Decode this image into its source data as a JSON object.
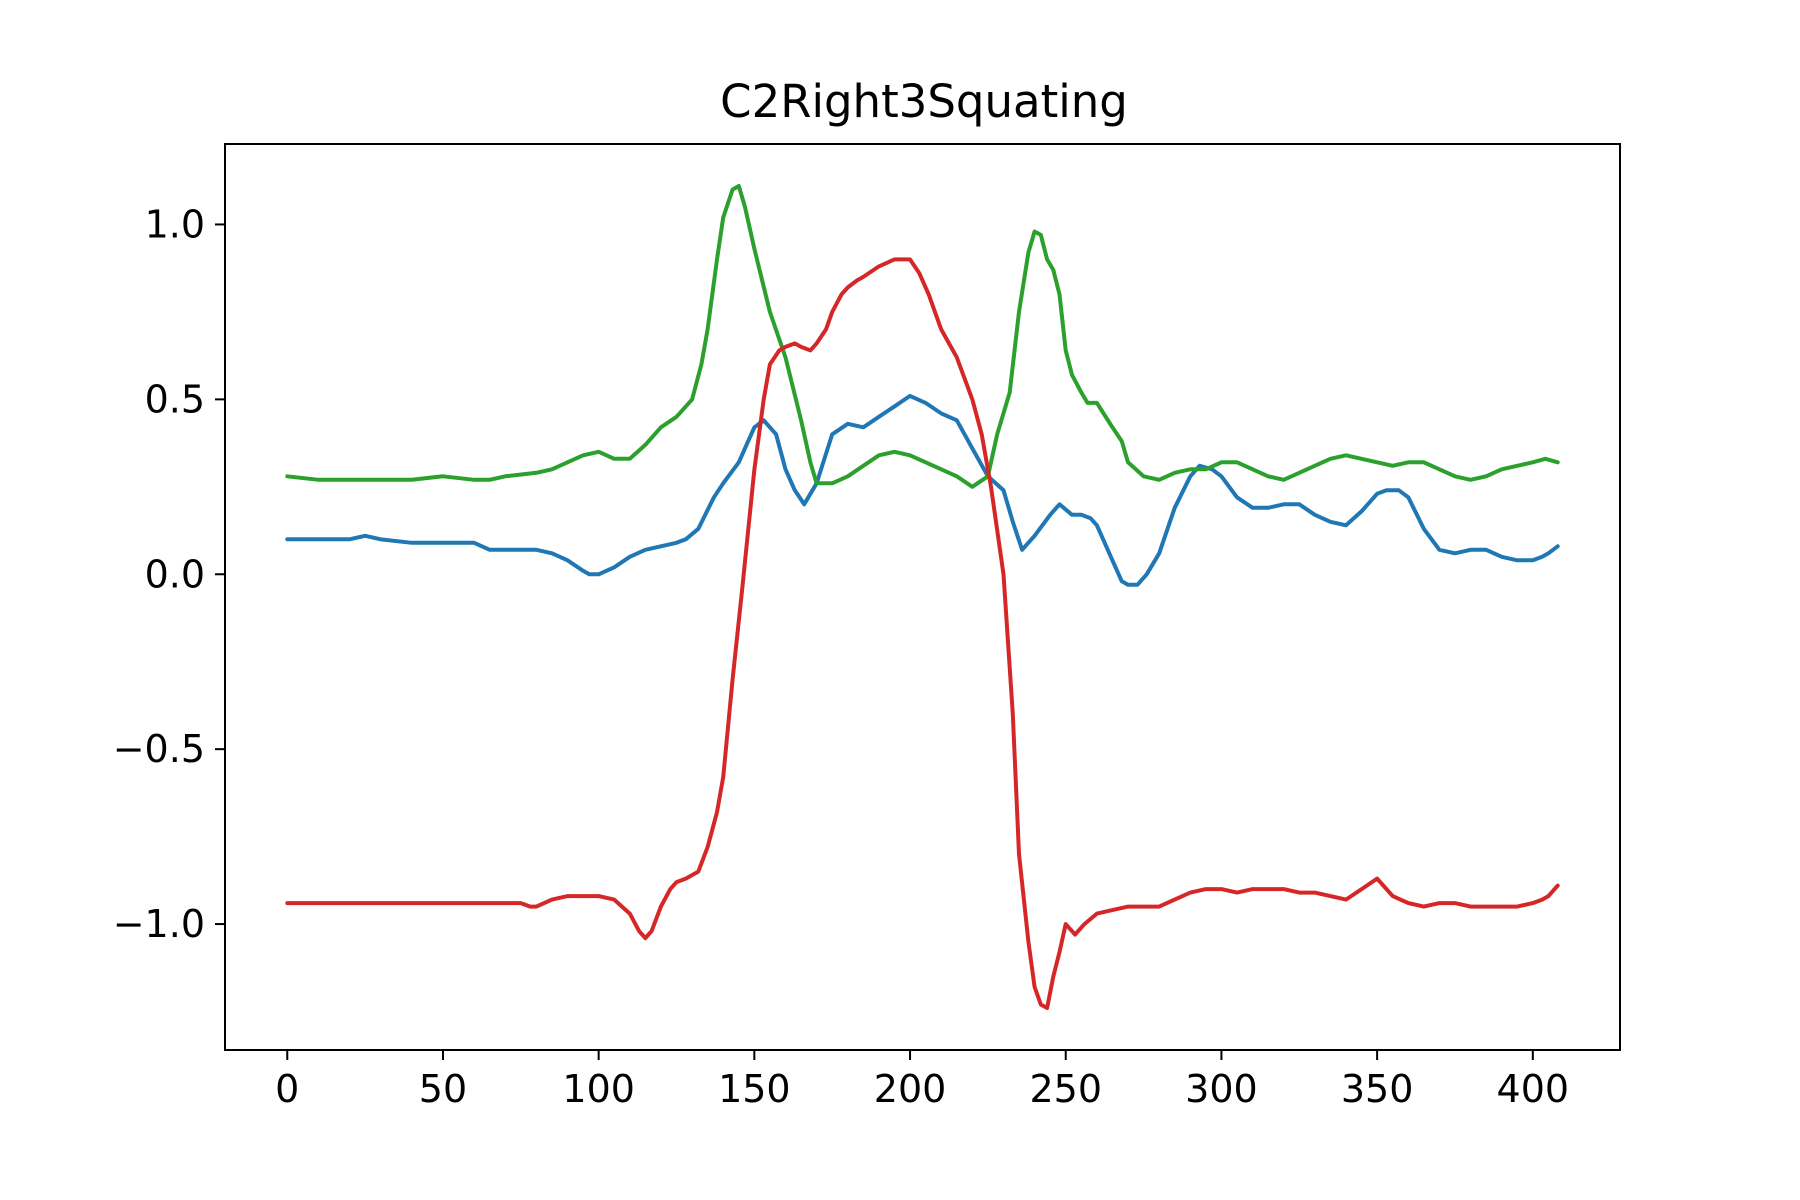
{
  "chart_data": {
    "type": "line",
    "title": "C2Right3Squating",
    "xlabel": "",
    "ylabel": "",
    "xlim": [
      -20,
      428
    ],
    "ylim": [
      -1.36,
      1.23
    ],
    "xticks": [
      0,
      50,
      100,
      150,
      200,
      250,
      300,
      350,
      400
    ],
    "xtick_labels": [
      "0",
      "50",
      "100",
      "150",
      "200",
      "250",
      "300",
      "350",
      "400"
    ],
    "yticks": [
      -1.0,
      -0.5,
      0.0,
      0.5,
      1.0
    ],
    "ytick_labels": [
      "−1.0",
      "−0.5",
      "0.0",
      "0.5",
      "1.0"
    ],
    "grid": false,
    "series": [
      {
        "color": "#1f77b4",
        "x": [
          0,
          10,
          20,
          25,
          30,
          40,
          50,
          60,
          65,
          70,
          80,
          85,
          90,
          95,
          97,
          100,
          105,
          110,
          115,
          120,
          125,
          128,
          132,
          137,
          140,
          145,
          148,
          150,
          153,
          157,
          160,
          163,
          166,
          170,
          175,
          180,
          185,
          190,
          195,
          200,
          205,
          210,
          215,
          220,
          225,
          230,
          233,
          236,
          240,
          245,
          248,
          252,
          255,
          258,
          260,
          265,
          268,
          270,
          273,
          276,
          280,
          285,
          290,
          293,
          297,
          300,
          305,
          310,
          315,
          320,
          325,
          330,
          335,
          340,
          345,
          350,
          353,
          357,
          360,
          365,
          370,
          375,
          380,
          385,
          390,
          395,
          400,
          403,
          405,
          408
        ],
        "y": [
          0.1,
          0.1,
          0.1,
          0.11,
          0.1,
          0.09,
          0.09,
          0.09,
          0.07,
          0.07,
          0.07,
          0.06,
          0.04,
          0.01,
          0.0,
          0.0,
          0.02,
          0.05,
          0.07,
          0.08,
          0.09,
          0.1,
          0.13,
          0.22,
          0.26,
          0.32,
          0.38,
          0.42,
          0.44,
          0.4,
          0.3,
          0.24,
          0.2,
          0.26,
          0.4,
          0.43,
          0.42,
          0.45,
          0.48,
          0.51,
          0.49,
          0.46,
          0.44,
          0.36,
          0.28,
          0.24,
          0.15,
          0.07,
          0.11,
          0.17,
          0.2,
          0.17,
          0.17,
          0.16,
          0.14,
          0.04,
          -0.02,
          -0.03,
          -0.03,
          0.0,
          0.06,
          0.19,
          0.28,
          0.31,
          0.3,
          0.28,
          0.22,
          0.19,
          0.19,
          0.2,
          0.2,
          0.17,
          0.15,
          0.14,
          0.18,
          0.23,
          0.24,
          0.24,
          0.22,
          0.13,
          0.07,
          0.06,
          0.07,
          0.07,
          0.05,
          0.04,
          0.04,
          0.05,
          0.06,
          0.08
        ]
      },
      {
        "color": "#2ca02c",
        "x": [
          0,
          10,
          20,
          30,
          40,
          50,
          60,
          65,
          70,
          80,
          85,
          90,
          95,
          100,
          105,
          110,
          115,
          120,
          125,
          130,
          133,
          135,
          138,
          140,
          143,
          145,
          147,
          150,
          155,
          160,
          165,
          168,
          170,
          175,
          180,
          185,
          190,
          195,
          200,
          205,
          210,
          215,
          220,
          225,
          228,
          232,
          235,
          238,
          240,
          242,
          244,
          246,
          248,
          250,
          252,
          255,
          257,
          260,
          265,
          268,
          270,
          275,
          280,
          285,
          290,
          295,
          300,
          305,
          310,
          315,
          320,
          325,
          330,
          335,
          340,
          345,
          350,
          355,
          360,
          365,
          370,
          375,
          380,
          385,
          390,
          395,
          400,
          404,
          408
        ],
        "y": [
          0.28,
          0.27,
          0.27,
          0.27,
          0.27,
          0.28,
          0.27,
          0.27,
          0.28,
          0.29,
          0.3,
          0.32,
          0.34,
          0.35,
          0.33,
          0.33,
          0.37,
          0.42,
          0.45,
          0.5,
          0.6,
          0.7,
          0.9,
          1.02,
          1.1,
          1.11,
          1.05,
          0.93,
          0.75,
          0.62,
          0.44,
          0.32,
          0.26,
          0.26,
          0.28,
          0.31,
          0.34,
          0.35,
          0.34,
          0.32,
          0.3,
          0.28,
          0.25,
          0.28,
          0.4,
          0.52,
          0.75,
          0.92,
          0.98,
          0.97,
          0.9,
          0.87,
          0.8,
          0.64,
          0.57,
          0.52,
          0.49,
          0.49,
          0.42,
          0.38,
          0.32,
          0.28,
          0.27,
          0.29,
          0.3,
          0.3,
          0.32,
          0.32,
          0.3,
          0.28,
          0.27,
          0.29,
          0.31,
          0.33,
          0.34,
          0.33,
          0.32,
          0.31,
          0.32,
          0.32,
          0.3,
          0.28,
          0.27,
          0.28,
          0.3,
          0.31,
          0.32,
          0.33,
          0.32
        ]
      },
      {
        "color": "#d62728",
        "x": [
          0,
          10,
          20,
          30,
          40,
          50,
          60,
          70,
          75,
          78,
          80,
          85,
          90,
          95,
          100,
          105,
          110,
          113,
          115,
          117,
          120,
          123,
          125,
          128,
          132,
          135,
          138,
          140,
          143,
          146,
          150,
          153,
          155,
          158,
          160,
          163,
          165,
          168,
          170,
          173,
          175,
          178,
          180,
          183,
          185,
          190,
          195,
          200,
          203,
          206,
          210,
          215,
          220,
          223,
          226,
          230,
          233,
          235,
          238,
          240,
          242,
          244,
          246,
          248,
          250,
          253,
          256,
          260,
          265,
          270,
          275,
          280,
          285,
          290,
          295,
          300,
          305,
          310,
          315,
          320,
          325,
          330,
          335,
          340,
          345,
          350,
          355,
          360,
          365,
          370,
          375,
          380,
          385,
          390,
          395,
          400,
          403,
          405,
          408
        ],
        "y": [
          -0.94,
          -0.94,
          -0.94,
          -0.94,
          -0.94,
          -0.94,
          -0.94,
          -0.94,
          -0.94,
          -0.95,
          -0.95,
          -0.93,
          -0.92,
          -0.92,
          -0.92,
          -0.93,
          -0.97,
          -1.02,
          -1.04,
          -1.02,
          -0.95,
          -0.9,
          -0.88,
          -0.87,
          -0.85,
          -0.78,
          -0.68,
          -0.58,
          -0.3,
          -0.05,
          0.3,
          0.5,
          0.6,
          0.64,
          0.65,
          0.66,
          0.65,
          0.64,
          0.66,
          0.7,
          0.75,
          0.8,
          0.82,
          0.84,
          0.85,
          0.88,
          0.9,
          0.9,
          0.86,
          0.8,
          0.7,
          0.62,
          0.5,
          0.4,
          0.25,
          0.0,
          -0.4,
          -0.8,
          -1.05,
          -1.18,
          -1.23,
          -1.24,
          -1.15,
          -1.08,
          -1.0,
          -1.03,
          -1.0,
          -0.97,
          -0.96,
          -0.95,
          -0.95,
          -0.95,
          -0.93,
          -0.91,
          -0.9,
          -0.9,
          -0.91,
          -0.9,
          -0.9,
          -0.9,
          -0.91,
          -0.91,
          -0.92,
          -0.93,
          -0.9,
          -0.87,
          -0.92,
          -0.94,
          -0.95,
          -0.94,
          -0.94,
          -0.95,
          -0.95,
          -0.95,
          -0.95,
          -0.94,
          -0.93,
          -0.92,
          -0.89
        ]
      }
    ]
  }
}
